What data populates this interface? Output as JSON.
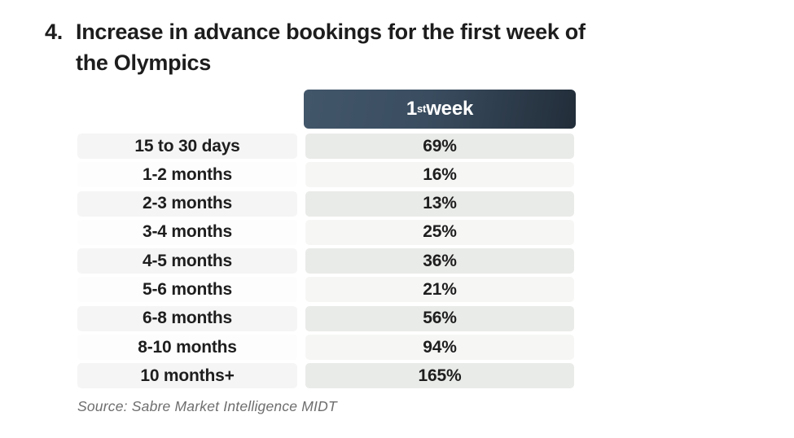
{
  "title": {
    "number": "4.",
    "line1": "Increase in advance bookings for the first week of",
    "line2": "the Olympics"
  },
  "table": {
    "header": {
      "num": "1",
      "sup": "st",
      "rest": " week"
    },
    "rows": [
      {
        "label": "15 to 30 days",
        "value": "69%"
      },
      {
        "label": "1-2 months",
        "value": "16%"
      },
      {
        "label": "2-3 months",
        "value": "13%"
      },
      {
        "label": "3-4 months",
        "value": "25%"
      },
      {
        "label": "4-5 months",
        "value": "36%"
      },
      {
        "label": "5-6 months",
        "value": "21%"
      },
      {
        "label": "6-8 months",
        "value": "56%"
      },
      {
        "label": "8-10 months",
        "value": "94%"
      },
      {
        "label": "10 months+",
        "value": "165%"
      }
    ]
  },
  "source": "Source: Sabre Market Intelligence MIDT",
  "colors": {
    "header_start": "#42566a",
    "header_end": "#222d39",
    "header_text": "#ffffff",
    "label_odd_bg": "#f5f5f5",
    "label_even_bg": "#fdfdfd",
    "value_odd_bg": "#e9ebe8",
    "value_even_bg": "#f6f7f5",
    "cell_text": "#1e1e1e",
    "title_text": "#1d1d1d",
    "source_text": "#6e6e6e"
  },
  "chart_data": {
    "type": "table",
    "title": "4. Increase in advance bookings for the first week of the Olympics",
    "columns": [
      "",
      "1st week"
    ],
    "categories": [
      "15 to 30 days",
      "1-2 months",
      "2-3 months",
      "3-4 months",
      "4-5 months",
      "5-6 months",
      "6-8 months",
      "8-10 months",
      "10 months+"
    ],
    "values": [
      69,
      16,
      13,
      25,
      36,
      21,
      56,
      94,
      165
    ],
    "unit": "%",
    "source": "Source: Sabre Market Intelligence MIDT",
    "layout": {
      "striped_rows": true,
      "header_over_value_column_only": true
    }
  }
}
